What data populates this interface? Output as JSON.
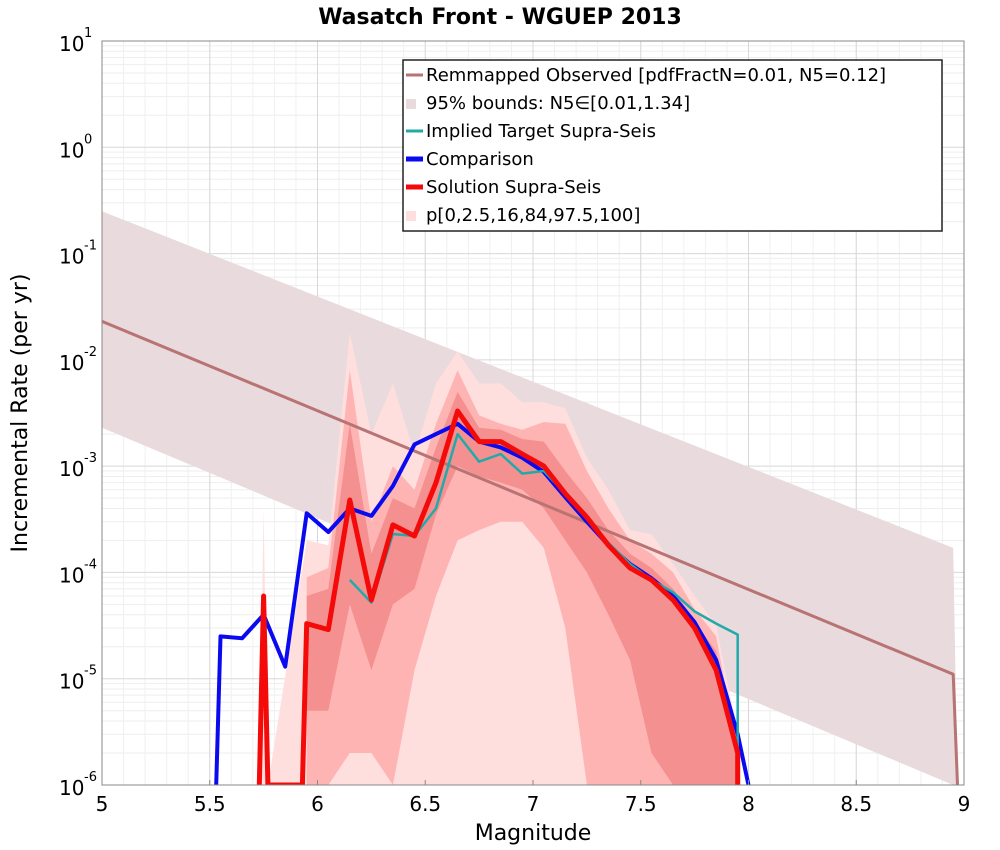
{
  "chart_data": {
    "type": "line",
    "title": "Wasatch Front - WGUEP 2013",
    "xlabel": "Magnitude",
    "ylabel": "Incremental Rate (per yr)",
    "xlim": [
      5,
      9
    ],
    "ylim": [
      1e-06,
      10
    ],
    "yscale": "log",
    "grid": true,
    "legend_position": "top-right",
    "x_ticks": [
      "5",
      "5.5",
      "6",
      "6.5",
      "7",
      "7.5",
      "8",
      "8.5",
      "9"
    ],
    "y_ticks": [
      {
        "base": "10",
        "exp": "-6",
        "value": 1e-06
      },
      {
        "base": "10",
        "exp": "-5",
        "value": 1e-05
      },
      {
        "base": "10",
        "exp": "-4",
        "value": 0.0001
      },
      {
        "base": "10",
        "exp": "-3",
        "value": 0.001
      },
      {
        "base": "10",
        "exp": "-2",
        "value": 0.01
      },
      {
        "base": "10",
        "exp": "-1",
        "value": 0.1
      },
      {
        "base": "10",
        "exp": "0",
        "value": 1
      },
      {
        "base": "10",
        "exp": "1",
        "value": 10
      }
    ],
    "colors": {
      "observed": "#b87373",
      "bounds": "#e8dadd",
      "implied": "#22aaaa",
      "comparison": "#0a0af0",
      "solution": "#f50a0a",
      "band_outer": "#ffdede",
      "band_mid": "#ffb4b4",
      "band_inner": "#f49090"
    },
    "legend": [
      {
        "key": "observed",
        "label": "Remmapped Observed [pdfFractN=0.01, N5=0.12]",
        "style": "line-thin"
      },
      {
        "key": "bounds",
        "label": "95% bounds: N5∈[0.01,1.34]",
        "style": "patch"
      },
      {
        "key": "implied",
        "label": "Implied Target Supra-Seis",
        "style": "line-thin"
      },
      {
        "key": "comparison",
        "label": "Comparison",
        "style": "line-thick"
      },
      {
        "key": "solution",
        "label": "Solution Supra-Seis",
        "style": "line-thick"
      },
      {
        "key": "band",
        "label": "p[0,2.5,16,84,97.5,100]",
        "style": "patch"
      }
    ],
    "series": [
      {
        "key": "bounds_band",
        "x": [
          5.0,
          8.95,
          8.95,
          8.97
        ],
        "lower": [
          0.0023,
          6e-07,
          6e-07,
          1e-06
        ],
        "upper": [
          0.25,
          0.00017,
          0.00017,
          1e-06
        ]
      },
      {
        "key": "observed",
        "x": [
          5.0,
          8.95,
          8.97
        ],
        "y": [
          0.023,
          1.1e-05,
          1e-06
        ]
      },
      {
        "key": "band_outer",
        "x": [
          5.73,
          5.75,
          5.77,
          5.95,
          6.05,
          6.15,
          6.25,
          6.35,
          6.45,
          6.55,
          6.65,
          6.75,
          6.85,
          6.95,
          7.05,
          7.15,
          7.25,
          7.35,
          7.45,
          7.55,
          7.65,
          7.75,
          7.85,
          7.95
        ],
        "lower": [
          1e-06,
          1e-06,
          1e-06,
          1e-06,
          1e-06,
          1e-06,
          1e-06,
          1e-06,
          1e-06,
          1e-06,
          1e-06,
          1e-06,
          1e-06,
          1e-06,
          1e-06,
          1e-06,
          1e-06,
          1e-06,
          1e-06,
          1e-06,
          1e-06,
          1e-06,
          1e-06,
          1e-06
        ],
        "upper": [
          1e-06,
          0.0004,
          1e-06,
          0.0002,
          0.00018,
          0.018,
          0.002,
          0.006,
          0.0013,
          0.006,
          0.012,
          0.006,
          0.006,
          0.004,
          0.004,
          0.0035,
          0.0012,
          0.0006,
          0.00025,
          0.00023,
          0.00012,
          6e-05,
          3.2e-05,
          3e-06
        ]
      },
      {
        "key": "band_mid",
        "x": [
          5.95,
          6.05,
          6.15,
          6.25,
          6.35,
          6.45,
          6.55,
          6.65,
          6.75,
          6.85,
          6.95,
          7.05,
          7.15,
          7.25,
          7.35,
          7.45,
          7.55,
          7.65,
          7.75,
          7.85,
          7.95
        ],
        "lower": [
          1e-06,
          1e-06,
          2e-06,
          2e-06,
          1e-06,
          1.2e-05,
          6e-05,
          0.0002,
          0.00025,
          0.0003,
          0.0003,
          0.00017,
          3e-05,
          1e-06,
          1e-06,
          1e-06,
          1e-06,
          1e-06,
          1e-06,
          1e-06,
          1e-06
        ],
        "upper": [
          9e-05,
          0.00011,
          0.008,
          0.0003,
          0.001,
          0.0006,
          0.0025,
          0.008,
          0.003,
          0.0025,
          0.0022,
          0.0026,
          0.0025,
          0.0009,
          0.0004,
          0.0002,
          0.00015,
          0.0001,
          4.5e-05,
          2.5e-05,
          2e-06
        ]
      },
      {
        "key": "band_inner",
        "x": [
          5.95,
          6.05,
          6.15,
          6.25,
          6.35,
          6.45,
          6.55,
          6.65,
          6.75,
          6.85,
          6.95,
          7.05,
          7.15,
          7.25,
          7.35,
          7.45,
          7.55,
          7.65,
          7.75,
          7.85,
          7.95
        ],
        "lower": [
          5e-06,
          5e-06,
          5e-05,
          1.2e-05,
          5e-05,
          7e-05,
          0.00035,
          0.001,
          0.0008,
          0.0007,
          0.0006,
          0.0004,
          0.0002,
          0.0001,
          4e-05,
          1.5e-05,
          2e-06,
          1e-06,
          1e-06,
          1e-06,
          1e-06
        ],
        "upper": [
          6e-05,
          7e-05,
          0.0025,
          0.00015,
          0.0005,
          0.0004,
          0.0015,
          0.005,
          0.0023,
          0.0022,
          0.0018,
          0.0017,
          0.0009,
          0.0005,
          0.00025,
          0.00015,
          0.00011,
          7e-05,
          3.5e-05,
          1.8e-05,
          1.5e-06
        ]
      },
      {
        "key": "implied",
        "x": [
          6.15,
          6.25,
          6.35,
          6.45,
          6.55,
          6.65,
          6.75,
          6.85,
          6.95,
          7.05,
          7.15,
          7.25,
          7.35,
          7.45,
          7.55,
          7.65,
          7.75,
          7.85,
          7.95,
          7.95
        ],
        "y": [
          8.5e-05,
          5.2e-05,
          0.00023,
          0.00022,
          0.0004,
          0.002,
          0.0011,
          0.0013,
          0.00085,
          0.0009,
          0.00055,
          0.00032,
          0.00019,
          0.00012,
          8.5e-05,
          6.5e-05,
          4.3e-05,
          3.3e-05,
          2.6e-05,
          1e-06
        ]
      },
      {
        "key": "comparison",
        "x": [
          5.53,
          5.55,
          5.65,
          5.75,
          5.85,
          5.95,
          6.05,
          6.15,
          6.25,
          6.35,
          6.45,
          6.55,
          6.65,
          6.75,
          6.85,
          6.95,
          7.05,
          7.15,
          7.25,
          7.35,
          7.45,
          7.55,
          7.65,
          7.75,
          7.85,
          7.95,
          8.0
        ],
        "y": [
          1e-06,
          2.5e-05,
          2.4e-05,
          4e-05,
          1.3e-05,
          0.00036,
          0.00024,
          0.0004,
          0.00034,
          0.00065,
          0.0016,
          0.002,
          0.0025,
          0.0017,
          0.0015,
          0.0012,
          0.00088,
          0.00051,
          0.0003,
          0.00018,
          0.00012,
          8.8e-05,
          6e-05,
          3.4e-05,
          1.5e-05,
          3e-06,
          1e-06
        ]
      },
      {
        "key": "solution",
        "x": [
          5.73,
          5.75,
          5.77,
          5.93,
          5.95,
          6.05,
          6.15,
          6.25,
          6.35,
          6.45,
          6.55,
          6.65,
          6.75,
          6.85,
          6.95,
          7.05,
          7.15,
          7.25,
          7.35,
          7.45,
          7.55,
          7.65,
          7.75,
          7.85,
          7.95,
          7.95
        ],
        "y": [
          1e-06,
          6e-05,
          1e-06,
          1e-06,
          3.3e-05,
          2.9e-05,
          0.00048,
          5.5e-05,
          0.00028,
          0.00022,
          0.0007,
          0.0033,
          0.0017,
          0.0017,
          0.0013,
          0.001,
          0.00055,
          0.00033,
          0.00018,
          0.00011,
          8.5e-05,
          5.5e-05,
          3e-05,
          1.2e-05,
          2e-06,
          1e-06
        ]
      }
    ]
  }
}
